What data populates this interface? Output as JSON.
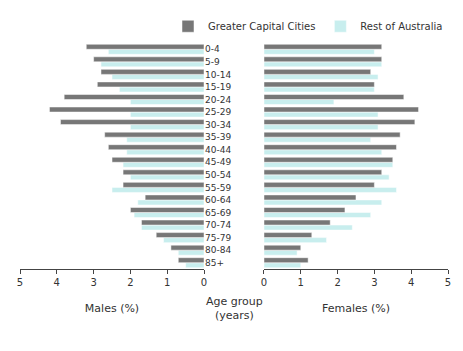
{
  "chart_data": [
    {
      "type": "bar",
      "orientation": "horizontal",
      "xlabel": "Males (%)",
      "categories": [
        "85+",
        "80-84",
        "75-79",
        "70-74",
        "65-69",
        "60-64",
        "55-59",
        "50-54",
        "45-49",
        "40-44",
        "35-39",
        "30-34",
        "25-29",
        "20-24",
        "15-19",
        "10-14",
        "5-9",
        "0-4"
      ],
      "series": [
        {
          "name": "Greater Capital Cities",
          "color": "#777777",
          "values": [
            0.7,
            0.9,
            1.3,
            1.7,
            2.0,
            1.6,
            2.2,
            2.2,
            2.5,
            2.6,
            2.7,
            3.9,
            4.2,
            3.8,
            2.9,
            2.8,
            3.0,
            3.2
          ]
        },
        {
          "name": "Rest of Australia",
          "color": "#c8eeee",
          "values": [
            0.5,
            0.7,
            1.1,
            1.7,
            1.9,
            1.8,
            2.5,
            2.0,
            2.2,
            2.1,
            2.1,
            2.0,
            2.0,
            2.0,
            2.3,
            2.5,
            2.8,
            2.6
          ]
        }
      ],
      "xlim": [
        5,
        0
      ],
      "xticks": [
        5,
        4,
        3,
        2,
        1,
        0
      ],
      "grid": false
    },
    {
      "type": "bar",
      "orientation": "horizontal",
      "xlabel": "Females (%)",
      "ylabel": "Age group\n(years)",
      "categories": [
        "85+",
        "80-84",
        "75-79",
        "70-74",
        "65-69",
        "60-64",
        "55-59",
        "50-54",
        "45-49",
        "40-44",
        "35-39",
        "30-34",
        "25-29",
        "20-24",
        "15-19",
        "10-14",
        "5-9",
        "0-4"
      ],
      "series": [
        {
          "name": "Greater Capital Cities",
          "color": "#777777",
          "values": [
            1.2,
            1.0,
            1.3,
            1.8,
            2.2,
            2.5,
            3.0,
            3.2,
            3.5,
            3.6,
            3.7,
            4.1,
            4.2,
            3.8,
            3.0,
            2.9,
            3.2,
            3.2
          ]
        },
        {
          "name": "Rest of Australia",
          "color": "#c8eeee",
          "values": [
            1.0,
            0.9,
            1.7,
            2.4,
            2.9,
            3.2,
            3.6,
            3.4,
            3.5,
            3.2,
            2.9,
            3.1,
            3.1,
            1.9,
            3.0,
            3.1,
            3.2,
            3.0
          ]
        }
      ],
      "xlim": [
        0,
        5
      ],
      "xticks": [
        0,
        1,
        2,
        3,
        4,
        5
      ],
      "grid": false,
      "legend": "upper right"
    }
  ]
}
